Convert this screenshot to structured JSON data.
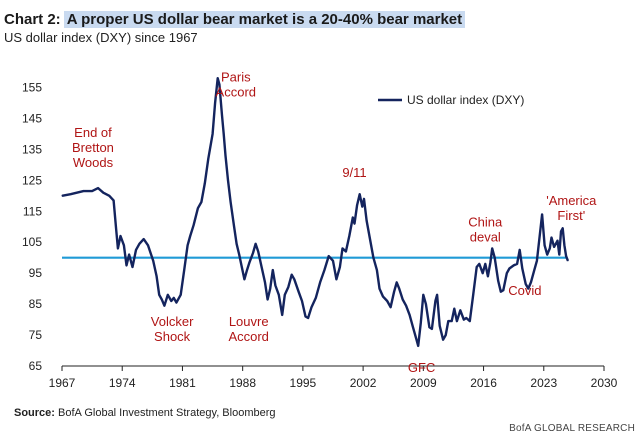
{
  "header": {
    "chart_label": "Chart 2:",
    "title": "A proper US dollar bear market is a 20-40% bear market",
    "subtitle": "US dollar index (DXY) since 1967"
  },
  "footer": {
    "source_label": "Source:",
    "source_text": "BofA Global Investment Strategy, Bloomberg",
    "brand": "BofA GLOBAL RESEARCH"
  },
  "colors": {
    "series": "#14245e",
    "reference_line": "#1f9ad6",
    "annotation": "#b01515"
  },
  "chart_data": {
    "type": "line",
    "title": "A proper US dollar bear market is a 20-40% bear market",
    "xlim": [
      1967,
      2030
    ],
    "ylim": [
      65,
      160
    ],
    "x_ticks": [
      1967,
      1974,
      1981,
      1988,
      1995,
      2002,
      2009,
      2016,
      2023,
      2030
    ],
    "y_ticks": [
      65,
      75,
      85,
      95,
      105,
      115,
      125,
      135,
      145,
      155
    ],
    "grid": false,
    "legend": {
      "position": "top-right",
      "entries": [
        "US dollar index (DXY)"
      ]
    },
    "reference_line": {
      "y": 100
    },
    "series": [
      {
        "name": "US dollar index (DXY)",
        "points": [
          [
            1967.0,
            120.0
          ],
          [
            1968.0,
            120.5
          ],
          [
            1969.5,
            121.5
          ],
          [
            1970.5,
            121.5
          ],
          [
            1971.2,
            122.5
          ],
          [
            1971.8,
            121.0
          ],
          [
            1972.5,
            120.0
          ],
          [
            1973.0,
            118.5
          ],
          [
            1973.3,
            109.0
          ],
          [
            1973.5,
            103.0
          ],
          [
            1973.8,
            107.0
          ],
          [
            1974.2,
            104.0
          ],
          [
            1974.5,
            97.5
          ],
          [
            1974.8,
            101.0
          ],
          [
            1975.2,
            97.0
          ],
          [
            1975.6,
            102.5
          ],
          [
            1976.0,
            104.5
          ],
          [
            1976.5,
            106.0
          ],
          [
            1977.0,
            104.0
          ],
          [
            1977.6,
            99.0
          ],
          [
            1978.0,
            94.0
          ],
          [
            1978.3,
            88.0
          ],
          [
            1978.6,
            86.5
          ],
          [
            1978.9,
            84.5
          ],
          [
            1979.3,
            88.0
          ],
          [
            1979.7,
            86.0
          ],
          [
            1980.0,
            87.0
          ],
          [
            1980.3,
            85.5
          ],
          [
            1980.8,
            88.0
          ],
          [
            1981.2,
            96.0
          ],
          [
            1981.6,
            104.0
          ],
          [
            1981.9,
            107.0
          ],
          [
            1982.3,
            110.5
          ],
          [
            1982.8,
            116.0
          ],
          [
            1983.2,
            118.0
          ],
          [
            1983.6,
            124.0
          ],
          [
            1984.0,
            132.0
          ],
          [
            1984.5,
            140.0
          ],
          [
            1984.8,
            150.0
          ],
          [
            1985.1,
            158.0
          ],
          [
            1985.3,
            156.0
          ],
          [
            1985.6,
            146.0
          ],
          [
            1985.8,
            140.0
          ],
          [
            1986.0,
            133.0
          ],
          [
            1986.3,
            125.0
          ],
          [
            1986.6,
            118.0
          ],
          [
            1987.0,
            110.0
          ],
          [
            1987.3,
            104.5
          ],
          [
            1987.6,
            101.0
          ],
          [
            1987.9,
            97.0
          ],
          [
            1988.2,
            93.0
          ],
          [
            1988.5,
            96.0
          ],
          [
            1988.8,
            98.5
          ],
          [
            1989.2,
            101.5
          ],
          [
            1989.5,
            104.5
          ],
          [
            1989.8,
            102.0
          ],
          [
            1990.2,
            97.0
          ],
          [
            1990.6,
            92.0
          ],
          [
            1990.9,
            86.5
          ],
          [
            1991.2,
            90.0
          ],
          [
            1991.5,
            96.0
          ],
          [
            1991.8,
            91.0
          ],
          [
            1992.2,
            88.0
          ],
          [
            1992.6,
            81.5
          ],
          [
            1992.9,
            88.0
          ],
          [
            1993.3,
            90.5
          ],
          [
            1993.7,
            94.5
          ],
          [
            1994.0,
            93.0
          ],
          [
            1994.5,
            89.0
          ],
          [
            1994.9,
            86.0
          ],
          [
            1995.3,
            81.0
          ],
          [
            1995.6,
            80.5
          ],
          [
            1996.0,
            84.0
          ],
          [
            1996.5,
            87.0
          ],
          [
            1997.0,
            92.0
          ],
          [
            1997.5,
            96.0
          ],
          [
            1998.0,
            100.5
          ],
          [
            1998.5,
            99.0
          ],
          [
            1998.9,
            93.0
          ],
          [
            1999.3,
            97.0
          ],
          [
            1999.6,
            103.0
          ],
          [
            2000.0,
            102.0
          ],
          [
            2000.4,
            107.0
          ],
          [
            2000.8,
            113.0
          ],
          [
            2001.0,
            111.0
          ],
          [
            2001.3,
            117.0
          ],
          [
            2001.6,
            120.5
          ],
          [
            2001.9,
            116.5
          ],
          [
            2002.1,
            119.0
          ],
          [
            2002.4,
            112.0
          ],
          [
            2002.8,
            106.0
          ],
          [
            2003.2,
            100.0
          ],
          [
            2003.6,
            96.0
          ],
          [
            2003.9,
            90.0
          ],
          [
            2004.3,
            87.5
          ],
          [
            2004.8,
            86.0
          ],
          [
            2005.2,
            84.0
          ],
          [
            2005.6,
            89.0
          ],
          [
            2005.9,
            92.0
          ],
          [
            2006.2,
            90.0
          ],
          [
            2006.6,
            86.5
          ],
          [
            2007.0,
            84.5
          ],
          [
            2007.4,
            81.5
          ],
          [
            2007.8,
            77.5
          ],
          [
            2008.2,
            73.5
          ],
          [
            2008.4,
            71.5
          ],
          [
            2008.7,
            79.0
          ],
          [
            2009.0,
            88.0
          ],
          [
            2009.3,
            85.0
          ],
          [
            2009.7,
            77.5
          ],
          [
            2010.0,
            77.0
          ],
          [
            2010.4,
            86.0
          ],
          [
            2010.6,
            88.0
          ],
          [
            2010.9,
            78.0
          ],
          [
            2011.3,
            73.5
          ],
          [
            2011.6,
            75.0
          ],
          [
            2011.9,
            79.5
          ],
          [
            2012.3,
            79.5
          ],
          [
            2012.6,
            83.5
          ],
          [
            2012.9,
            79.5
          ],
          [
            2013.3,
            83.0
          ],
          [
            2013.7,
            80.0
          ],
          [
            2014.0,
            80.5
          ],
          [
            2014.4,
            79.5
          ],
          [
            2014.8,
            88.0
          ],
          [
            2015.2,
            97.0
          ],
          [
            2015.5,
            98.0
          ],
          [
            2015.9,
            95.0
          ],
          [
            2016.2,
            98.0
          ],
          [
            2016.5,
            94.0
          ],
          [
            2016.8,
            98.5
          ],
          [
            2017.0,
            103.0
          ],
          [
            2017.3,
            100.0
          ],
          [
            2017.7,
            92.5
          ],
          [
            2018.0,
            89.0
          ],
          [
            2018.3,
            89.5
          ],
          [
            2018.7,
            95.0
          ],
          [
            2019.0,
            96.5
          ],
          [
            2019.5,
            97.5
          ],
          [
            2019.9,
            98.0
          ],
          [
            2020.2,
            102.5
          ],
          [
            2020.5,
            96.5
          ],
          [
            2020.9,
            91.5
          ],
          [
            2021.2,
            90.0
          ],
          [
            2021.5,
            92.0
          ],
          [
            2021.9,
            96.0
          ],
          [
            2022.2,
            99.0
          ],
          [
            2022.5,
            106.5
          ],
          [
            2022.8,
            114.0
          ],
          [
            2023.1,
            104.0
          ],
          [
            2023.4,
            101.0
          ],
          [
            2023.7,
            103.0
          ],
          [
            2023.9,
            106.5
          ],
          [
            2024.2,
            103.5
          ],
          [
            2024.6,
            105.5
          ],
          [
            2024.8,
            101.0
          ],
          [
            2025.0,
            108.5
          ],
          [
            2025.2,
            109.5
          ],
          [
            2025.4,
            104.0
          ],
          [
            2025.6,
            100.5
          ],
          [
            2025.8,
            99.0
          ]
        ]
      }
    ],
    "annotations": [
      {
        "lines": [
          "End of",
          "Bretton",
          "Woods"
        ],
        "x": 1970.6,
        "y": 139
      },
      {
        "lines": [
          "Volcker",
          "Shock"
        ],
        "x": 1979.8,
        "y": 78
      },
      {
        "lines": [
          "Paris",
          "Accord"
        ],
        "x": 1987.2,
        "y": 157
      },
      {
        "lines": [
          "Louvre",
          "Accord"
        ],
        "x": 1988.7,
        "y": 78
      },
      {
        "lines": [
          "9/11"
        ],
        "x": 2001.0,
        "y": 126
      },
      {
        "lines": [
          "GFC"
        ],
        "x": 2008.8,
        "y": 63
      },
      {
        "lines": [
          "China",
          "deval"
        ],
        "x": 2016.2,
        "y": 110
      },
      {
        "lines": [
          "Covid"
        ],
        "x": 2020.8,
        "y": 88
      },
      {
        "lines": [
          "'America",
          "First'"
        ],
        "x": 2026.2,
        "y": 117
      }
    ]
  }
}
